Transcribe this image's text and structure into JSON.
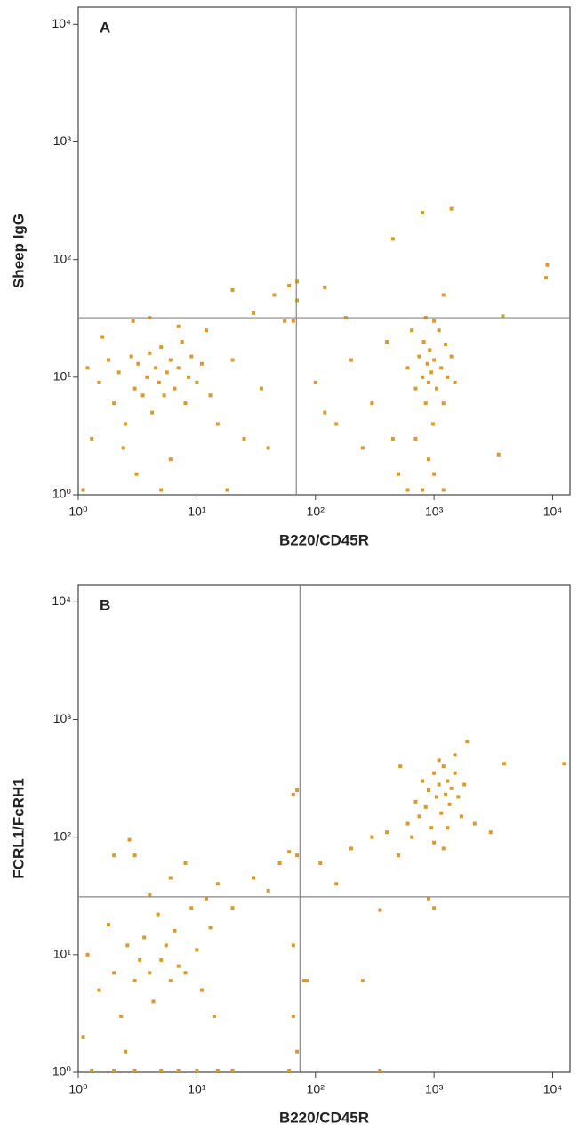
{
  "chart_data": [
    {
      "type": "scatter",
      "panel_label": "A",
      "xlabel": "B220/CD45R",
      "ylabel": "Sheep IgG",
      "xscale": "log",
      "yscale": "log",
      "color": "#d99a2b",
      "xlim": [
        1,
        14000
      ],
      "ylim": [
        1,
        14000
      ],
      "xticks": [
        {
          "value": 1,
          "label": "10⁰"
        },
        {
          "value": 10,
          "label": "10¹"
        },
        {
          "value": 100,
          "label": "10²"
        },
        {
          "value": 1000,
          "label": "10³"
        },
        {
          "value": 10000,
          "label": "10⁴"
        }
      ],
      "yticks": [
        {
          "value": 1,
          "label": "10⁰"
        },
        {
          "value": 10,
          "label": "10¹"
        },
        {
          "value": 100,
          "label": "10²"
        },
        {
          "value": 1000,
          "label": "10³"
        },
        {
          "value": 10000,
          "label": "10⁴"
        }
      ],
      "quadrant": {
        "x": 69,
        "y": 32
      },
      "x": [
        1.2,
        1.5,
        1.8,
        2,
        2.2,
        2.5,
        2.8,
        3,
        3.2,
        3.5,
        3.8,
        4,
        4.2,
        4.5,
        4.8,
        5,
        5.3,
        5.6,
        6,
        6.5,
        7,
        7.5,
        8,
        8.5,
        9,
        10,
        11,
        12,
        13,
        15,
        1.3,
        2.4,
        3.1,
        5,
        1.1,
        6,
        18,
        1.6,
        2.9,
        4,
        7,
        20,
        25,
        35,
        40,
        55,
        65,
        70,
        70,
        60,
        45,
        20,
        30,
        600,
        700,
        750,
        800,
        820,
        850,
        880,
        900,
        920,
        950,
        980,
        1000,
        1050,
        1100,
        1150,
        1200,
        1250,
        1300,
        1400,
        700,
        900,
        1000,
        800,
        1200,
        500,
        450,
        1000,
        850,
        650,
        1500,
        600,
        100,
        150,
        200,
        250,
        300,
        400,
        120,
        180,
        800,
        1400,
        450,
        9000,
        8800,
        1200,
        120,
        3800,
        3500
      ],
      "values": [
        12,
        9,
        14,
        6,
        11,
        4,
        15,
        8,
        13,
        7,
        10,
        16,
        5,
        12,
        9,
        18,
        7,
        11,
        14,
        8,
        12,
        20,
        6,
        10,
        15,
        9,
        13,
        25,
        7,
        4,
        3,
        2.5,
        1.5,
        1.1,
        1.1,
        2,
        1.1,
        22,
        30,
        32,
        27,
        14,
        3,
        8,
        2.5,
        30,
        30,
        45,
        65,
        60,
        50,
        55,
        35,
        12,
        8,
        15,
        10,
        20,
        6,
        13,
        9,
        17,
        11,
        4,
        14,
        8,
        25,
        12,
        6,
        19,
        10,
        15,
        3,
        2,
        1.5,
        1.1,
        1.1,
        1.5,
        3,
        30,
        32,
        25,
        9,
        1.1,
        9,
        4,
        14,
        2.5,
        6,
        20,
        5,
        32,
        250,
        270,
        150,
        90,
        70,
        50,
        58,
        33,
        2.2
      ]
    },
    {
      "type": "scatter",
      "panel_label": "B",
      "xlabel": "B220/CD45R",
      "ylabel": "FCRL1/FcRH1",
      "xscale": "log",
      "yscale": "log",
      "color": "#d99a2b",
      "xlim": [
        1,
        14000
      ],
      "ylim": [
        1,
        14000
      ],
      "xticks": [
        {
          "value": 1,
          "label": "10⁰"
        },
        {
          "value": 10,
          "label": "10¹"
        },
        {
          "value": 100,
          "label": "10²"
        },
        {
          "value": 1000,
          "label": "10³"
        },
        {
          "value": 10000,
          "label": "10⁴"
        }
      ],
      "yticks": [
        {
          "value": 1,
          "label": "10⁰"
        },
        {
          "value": 10,
          "label": "10¹"
        },
        {
          "value": 100,
          "label": "10²"
        },
        {
          "value": 1000,
          "label": "10³"
        },
        {
          "value": 10000,
          "label": "10⁴"
        }
      ],
      "quadrant": {
        "x": 74,
        "y": 31
      },
      "x": [
        1.2,
        1.5,
        1.8,
        2,
        2.3,
        2.6,
        3,
        3.3,
        3.6,
        4,
        4.3,
        4.7,
        5,
        5.5,
        6,
        6.5,
        7,
        8,
        9,
        10,
        11,
        13,
        12,
        14,
        1.3,
        2,
        3,
        5,
        7,
        10,
        15,
        20,
        1.1,
        2.5,
        4,
        6,
        8,
        3,
        2,
        2.7,
        15,
        20,
        30,
        40,
        50,
        60,
        70,
        70,
        65,
        65,
        65,
        60,
        70,
        80,
        85,
        110,
        150,
        200,
        250,
        300,
        350,
        400,
        350,
        600,
        700,
        750,
        800,
        850,
        900,
        950,
        1000,
        1050,
        1100,
        1150,
        1200,
        1250,
        1300,
        1350,
        1400,
        1500,
        1600,
        1700,
        1800,
        1000,
        1200,
        1300,
        1100,
        1500,
        1900,
        650,
        500,
        520,
        3900,
        12500,
        1000,
        900,
        3000,
        2200
      ],
      "values": [
        10,
        5,
        18,
        7,
        3,
        12,
        6,
        9,
        14,
        7,
        4,
        22,
        9,
        12,
        6,
        16,
        8,
        7,
        25,
        11,
        5,
        17,
        30,
        3,
        1,
        1,
        1,
        1,
        1,
        1,
        1,
        1,
        2,
        1.5,
        32,
        45,
        60,
        70,
        70,
        95,
        40,
        25,
        45,
        35,
        60,
        75,
        70,
        250,
        230,
        12,
        3,
        1,
        1.5,
        6,
        6,
        60,
        40,
        80,
        6,
        100,
        24,
        110,
        1,
        130,
        200,
        150,
        300,
        180,
        250,
        120,
        350,
        220,
        280,
        160,
        400,
        230,
        300,
        190,
        260,
        350,
        220,
        150,
        280,
        90,
        80,
        120,
        450,
        500,
        650,
        100,
        70,
        400,
        420,
        420,
        25,
        30,
        110,
        130
      ]
    }
  ]
}
